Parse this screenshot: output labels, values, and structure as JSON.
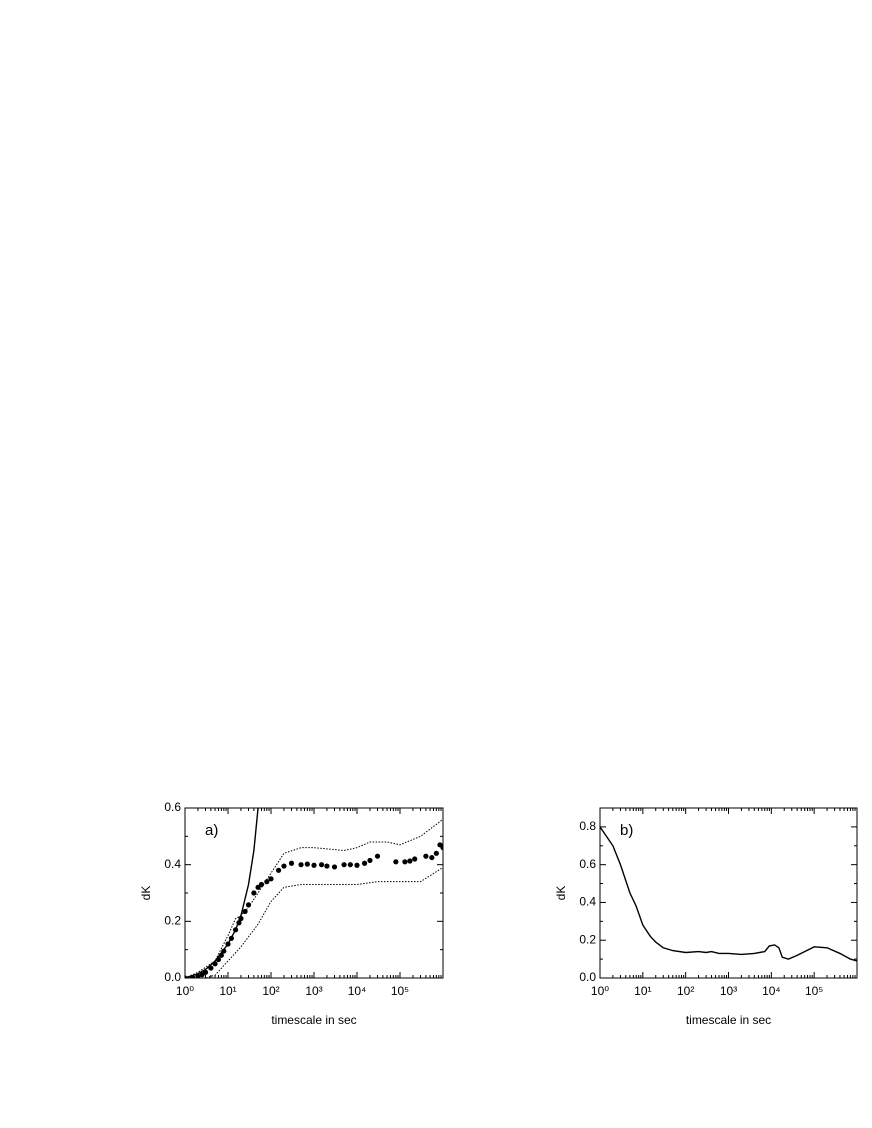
{
  "chart_data": [
    {
      "type": "scatter",
      "annotation": "a)",
      "xlabel": "timescale in sec",
      "ylabel": "dK",
      "xscale": "log",
      "xlim": [
        1,
        1000000
      ],
      "xticks": [
        {
          "value": 1,
          "label": "10⁰"
        },
        {
          "value": 10,
          "label": "10¹"
        },
        {
          "value": 100,
          "label": "10²"
        },
        {
          "value": 1000,
          "label": "10³"
        },
        {
          "value": 10000,
          "label": "10⁴"
        },
        {
          "value": 100000,
          "label": "10⁵"
        }
      ],
      "ylim": [
        0,
        0.6
      ],
      "yticks": [
        {
          "value": 0,
          "label": "0.0"
        },
        0.2,
        0.4,
        0.6
      ],
      "series": [
        {
          "style": "dots",
          "color": "#000000",
          "x": [
            1,
            1.5,
            2,
            2.5,
            3,
            4,
            5,
            6,
            7,
            8,
            10,
            12,
            15,
            18,
            20,
            25,
            30,
            40,
            50,
            60,
            80,
            100,
            150,
            200,
            300,
            500,
            700,
            1000,
            1500,
            2000,
            3000,
            5000,
            7000,
            10000,
            15000,
            20000,
            30000,
            80000,
            130000,
            170000,
            220000,
            400000,
            550000,
            700000,
            850000,
            1000000
          ],
          "values": [
            0,
            0.002,
            0.006,
            0.012,
            0.02,
            0.035,
            0.05,
            0.065,
            0.08,
            0.095,
            0.12,
            0.14,
            0.17,
            0.195,
            0.21,
            0.235,
            0.258,
            0.3,
            0.32,
            0.33,
            0.34,
            0.35,
            0.38,
            0.395,
            0.405,
            0.4,
            0.402,
            0.398,
            0.4,
            0.395,
            0.392,
            0.4,
            0.4,
            0.398,
            0.405,
            0.415,
            0.43,
            0.41,
            0.41,
            0.413,
            0.42,
            0.43,
            0.425,
            0.44,
            0.47,
            0.46
          ]
        },
        {
          "style": "dotted",
          "color": "#000000",
          "x": [
            1,
            2,
            5,
            10,
            15,
            20,
            30,
            50,
            100,
            200,
            500,
            1000,
            5000,
            10000,
            20000,
            50000,
            100000,
            300000,
            1000000
          ],
          "values": [
            0,
            0.02,
            0.06,
            0.15,
            0.21,
            0.22,
            0.25,
            0.3,
            0.37,
            0.44,
            0.46,
            0.46,
            0.45,
            0.46,
            0.48,
            0.48,
            0.47,
            0.5,
            0.56
          ]
        },
        {
          "style": "dotted",
          "color": "#000000",
          "x": [
            1,
            3,
            5,
            10,
            20,
            50,
            100,
            200,
            500,
            1000,
            10000,
            30000,
            100000,
            300000,
            1000000
          ],
          "values": [
            0,
            0,
            0.01,
            0.06,
            0.11,
            0.19,
            0.27,
            0.32,
            0.33,
            0.33,
            0.33,
            0.34,
            0.34,
            0.34,
            0.39
          ]
        },
        {
          "style": "solid",
          "color": "#000000",
          "x": [
            1,
            2,
            3,
            5,
            10,
            15,
            20,
            30,
            40,
            50
          ],
          "values": [
            0,
            0.015,
            0.03,
            0.06,
            0.12,
            0.17,
            0.22,
            0.33,
            0.45,
            0.6
          ]
        }
      ]
    },
    {
      "type": "line",
      "annotation": "b)",
      "xlabel": "timescale in sec",
      "ylabel": "dK",
      "xscale": "log",
      "xlim": [
        1,
        1000000
      ],
      "xticks": [
        {
          "value": 1,
          "label": "10⁰"
        },
        {
          "value": 10,
          "label": "10¹"
        },
        {
          "value": 100,
          "label": "10²"
        },
        {
          "value": 1000,
          "label": "10³"
        },
        {
          "value": 10000,
          "label": "10⁴"
        },
        {
          "value": 100000,
          "label": "10⁵"
        }
      ],
      "ylim": [
        0,
        0.9
      ],
      "yticks": [
        {
          "value": 0,
          "label": "0.0"
        },
        0.2,
        0.4,
        0.6,
        0.8
      ],
      "series": [
        {
          "style": "solid",
          "color": "#000000",
          "x": [
            1,
            2,
            3,
            5,
            7,
            10,
            15,
            20,
            30,
            50,
            100,
            200,
            300,
            400,
            600,
            1000,
            2000,
            4000,
            7000,
            9000,
            12000,
            15000,
            18000,
            25000,
            40000,
            100000,
            200000,
            400000,
            700000,
            1000000
          ],
          "values": [
            0.8,
            0.7,
            0.6,
            0.45,
            0.38,
            0.28,
            0.22,
            0.19,
            0.16,
            0.145,
            0.135,
            0.14,
            0.135,
            0.14,
            0.13,
            0.13,
            0.125,
            0.13,
            0.14,
            0.17,
            0.175,
            0.16,
            0.11,
            0.1,
            0.12,
            0.165,
            0.16,
            0.13,
            0.1,
            0.09
          ]
        }
      ]
    }
  ]
}
